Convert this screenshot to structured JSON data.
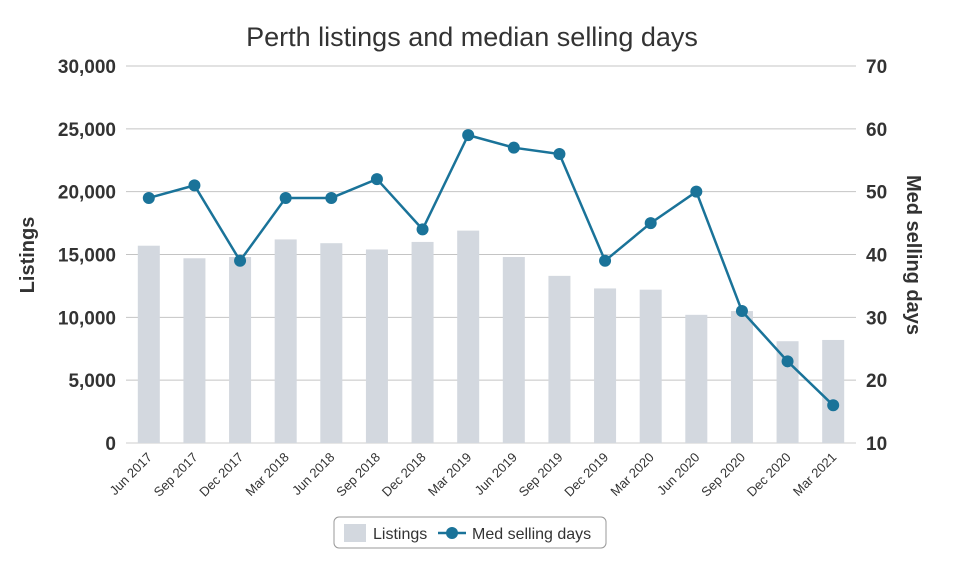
{
  "chart_data": {
    "type": "bar",
    "title": "Perth listings and median selling days",
    "categories": [
      "Jun 2017",
      "Sep 2017",
      "Dec 2017",
      "Mar 2018",
      "Jun 2018",
      "Sep 2018",
      "Dec 2018",
      "Mar 2019",
      "Jun 2019",
      "Sep 2019",
      "Dec 2019",
      "Mar 2020",
      "Jun 2020",
      "Sep 2020",
      "Dec 2020",
      "Mar 2021"
    ],
    "y_left": {
      "label": "Listings",
      "ylim": [
        0,
        30000
      ],
      "ticks": [
        "0",
        "5,000",
        "10,000",
        "15,000",
        "20,000",
        "25,000",
        "30,000"
      ],
      "tick_values": [
        0,
        5000,
        10000,
        15000,
        20000,
        25000,
        30000
      ]
    },
    "y_right": {
      "label": "Med selling days",
      "ylim": [
        10,
        70
      ],
      "ticks": [
        "10",
        "20",
        "30",
        "40",
        "50",
        "60",
        "70"
      ],
      "tick_values": [
        10,
        20,
        30,
        40,
        50,
        60,
        70
      ]
    },
    "series": [
      {
        "name": "Listings",
        "type": "bar",
        "axis": "left",
        "color": "#d3d8df",
        "values": [
          15700,
          14700,
          14800,
          16200,
          15900,
          15400,
          16000,
          16900,
          14800,
          13300,
          12300,
          12200,
          10200,
          10500,
          8100,
          8200
        ]
      },
      {
        "name": "Med selling days",
        "type": "line",
        "axis": "right",
        "color": "#1a7399",
        "values": [
          49,
          51,
          39,
          49,
          49,
          52,
          44,
          59,
          57,
          56,
          39,
          45,
          50,
          31,
          23,
          16
        ]
      }
    ],
    "grid": true,
    "legend": "bottom-center"
  }
}
